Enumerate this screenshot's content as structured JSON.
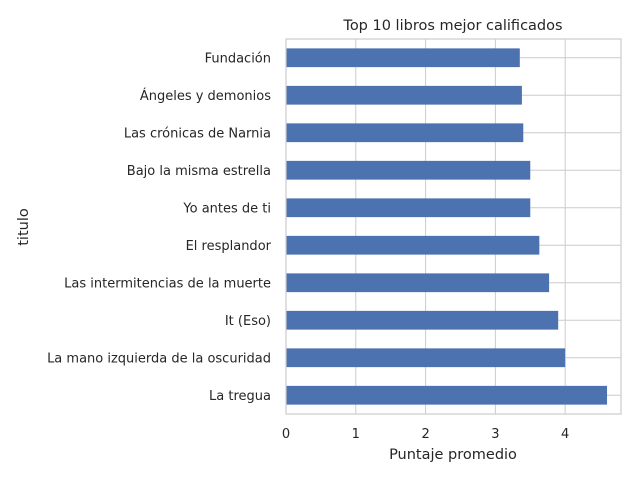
{
  "chart_data": {
    "type": "bar",
    "orientation": "horizontal",
    "title": "Top 10 libros mejor calificados",
    "xlabel": "Puntaje promedio",
    "ylabel": "titulo",
    "xlim": [
      0,
      4.8
    ],
    "xticks": [
      0,
      1,
      2,
      3,
      4
    ],
    "grid": true,
    "bar_color": "#4c72b0",
    "grid_color": "#cccccc",
    "categories": [
      "Fundación",
      "Ángeles y demonios",
      "Las crónicas de Narnia",
      "Bajo la misma estrella",
      "Yo antes de ti",
      "El resplandor",
      "Las intermitencias de la muerte",
      "It (Eso)",
      "La mano izquierda de la oscuridad",
      "La tregua"
    ],
    "values": [
      3.35,
      3.38,
      3.4,
      3.5,
      3.5,
      3.63,
      3.77,
      3.9,
      4.0,
      4.6
    ]
  }
}
